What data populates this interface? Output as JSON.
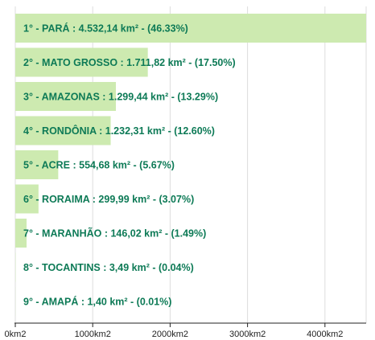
{
  "chart_data": {
    "type": "bar",
    "orientation": "horizontal",
    "categories": [
      "1° - PARÁ : 4.532,14 km² - (46.33%)",
      "2° - MATO GROSSO : 1.711,82 km² - (17.50%)",
      "3° - AMAZONAS : 1.299,44 km² - (13.29%)",
      "4° - RONDÔNIA : 1.232,31 km² - (12.60%)",
      "5° - ACRE : 554,68 km² - (5.67%)",
      "6° - RORAIMA : 299,99 km² - (3.07%)",
      "7° - MARANHÃO : 146,02 km² - (1.49%)",
      "8° - TOCANTINS : 3,49 km² - (0.04%)",
      "9° - AMAPÁ : 1,40 km² - (0.01%)"
    ],
    "values": [
      4532.14,
      1711.82,
      1299.44,
      1232.31,
      554.68,
      299.99,
      146.02,
      3.49,
      1.4
    ],
    "xlim": [
      0,
      4532.14
    ],
    "xticks": [
      0,
      1000,
      2000,
      3000,
      4000
    ],
    "xtick_labels": [
      "0km2",
      "1000km2",
      "2000km2",
      "3000km2",
      "4000km2"
    ],
    "grid": true,
    "title": "",
    "xlabel": "",
    "ylabel": "",
    "colors": {
      "bar": "#cdeab0",
      "label": "#0d7a56",
      "grid": "#dddddd",
      "axis": "#222222"
    }
  }
}
